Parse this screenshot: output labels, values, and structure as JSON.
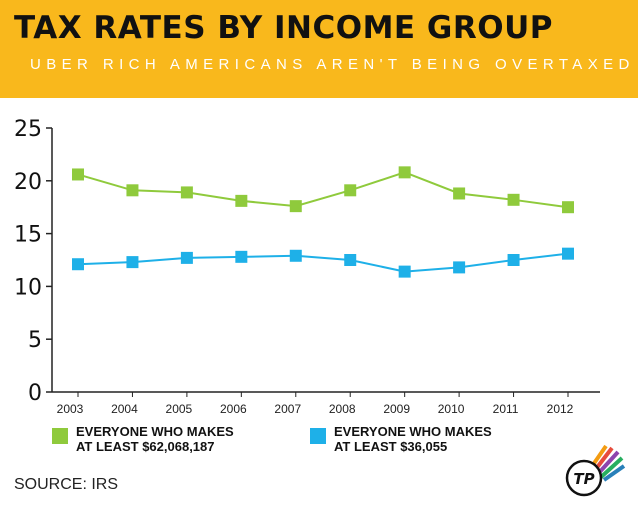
{
  "header": {
    "title": "TAX RATES BY INCOME GROUP",
    "subtitle": "UBER RICH AMERICANS AREN'T BEING OVERTAXED"
  },
  "colors": {
    "banner": "#f9b81c",
    "series_rich": "#8fca3c",
    "series_general": "#1eb0e8",
    "axis": "#222222"
  },
  "chart_data": {
    "type": "line",
    "title": "TAX RATES BY INCOME GROUP",
    "subtitle": "UBER RICH AMERICANS AREN'T BEING OVERTAXED",
    "xlabel": "",
    "ylabel": "",
    "x": [
      2003,
      2004,
      2005,
      2006,
      2007,
      2008,
      2009,
      2010,
      2011,
      2012
    ],
    "x_tick_labels": [
      "2003",
      "2004",
      "2005",
      "2006",
      "2007",
      "2008",
      "2009",
      "2010",
      "2011",
      "2012"
    ],
    "y_ticks": [
      "0",
      "5",
      "10",
      "15",
      "20",
      "25"
    ],
    "ylim": [
      0,
      25
    ],
    "grid": false,
    "legend_position": "bottom",
    "series": [
      {
        "name": "EVERYONE WHO MAKES AT LEAST $62,068,187",
        "legend_line1": "EVERYONE WHO MAKES",
        "legend_line2": "AT LEAST $62,068,187",
        "color": "#8fca3c",
        "marker": "square",
        "values": [
          20.6,
          19.1,
          18.9,
          18.1,
          17.6,
          19.1,
          20.8,
          18.8,
          18.2,
          17.5
        ]
      },
      {
        "name": "EVERYONE WHO MAKES AT LEAST $36,055",
        "legend_line1": "EVERYONE WHO MAKES",
        "legend_line2": "AT LEAST $36,055",
        "color": "#1eb0e8",
        "marker": "square",
        "values": [
          12.1,
          12.3,
          12.7,
          12.8,
          12.9,
          12.5,
          11.4,
          11.8,
          12.5,
          13.1
        ]
      }
    ]
  },
  "footer": {
    "source": "SOURCE: IRS",
    "logo_text": "TP"
  }
}
